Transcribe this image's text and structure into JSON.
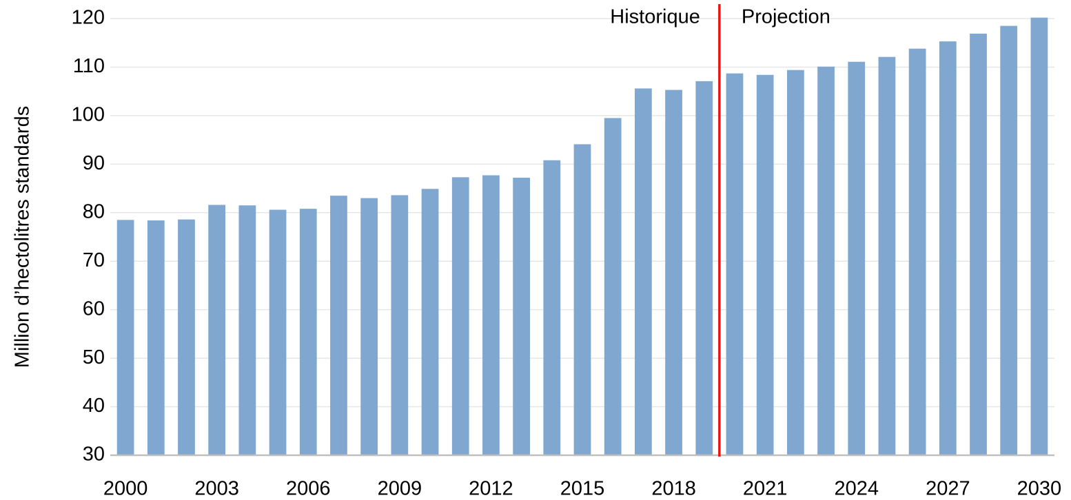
{
  "chart_data": {
    "type": "bar",
    "y_label": "Million d’hectolitres standards",
    "categories": [
      "2000",
      null,
      null,
      "2003",
      null,
      null,
      "2006",
      null,
      null,
      "2009",
      null,
      null,
      "2012",
      null,
      null,
      "2015",
      null,
      null,
      "2018",
      null,
      null,
      "2021",
      null,
      null,
      "2024",
      null,
      null,
      "2027",
      null,
      null,
      "2030"
    ],
    "values": [
      78.5,
      78.4,
      78.6,
      81.6,
      81.5,
      80.6,
      80.8,
      83.5,
      83.0,
      83.6,
      84.9,
      87.3,
      87.7,
      87.2,
      90.8,
      94.1,
      99.5,
      105.6,
      105.3,
      107.1,
      108.7,
      108.4,
      109.4,
      110.1,
      111.1,
      112.1,
      113.8,
      115.3,
      116.9,
      118.5,
      120.2
    ],
    "color": "#80a7d0",
    "ylim": [
      30,
      120
    ],
    "yticks": [
      30,
      40,
      50,
      60,
      70,
      80,
      90,
      100,
      110,
      120
    ],
    "grid": true,
    "divider": {
      "index": 20,
      "color": "#ee1111",
      "left_label": "Historique",
      "right_label": "Projection"
    }
  }
}
